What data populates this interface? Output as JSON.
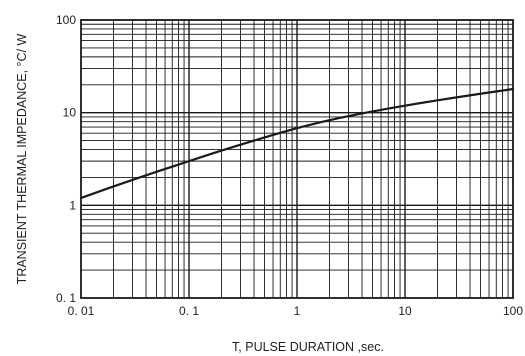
{
  "chart_data": {
    "type": "line",
    "title": "",
    "xlabel": "T, PULSE DURATION ,sec.",
    "ylabel": "TRANSIENT THERMAL IMPEDANCE, °C/ W",
    "xscale": "log",
    "yscale": "log",
    "xlim": [
      0.01,
      100
    ],
    "ylim": [
      0.1,
      100
    ],
    "grid": true,
    "legend": "none",
    "x_ticks": [
      {
        "value": 0.01,
        "label": "0. 01"
      },
      {
        "value": 0.1,
        "label": "0. 1"
      },
      {
        "value": 1,
        "label": "1"
      },
      {
        "value": 10,
        "label": "10"
      },
      {
        "value": 100,
        "label": "100"
      }
    ],
    "y_ticks": [
      {
        "value": 0.1,
        "label": "0. 1"
      },
      {
        "value": 1,
        "label": "1"
      },
      {
        "value": 10,
        "label": "10"
      },
      {
        "value": 100,
        "label": "100"
      }
    ],
    "series": [
      {
        "color": "#1a1a1a",
        "x": [
          0.01,
          0.02,
          0.05,
          0.1,
          0.2,
          0.5,
          1,
          2,
          5,
          10,
          20,
          50,
          100
        ],
        "y": [
          1.2,
          1.6,
          2.3,
          3.0,
          3.9,
          5.4,
          6.8,
          8.3,
          10.3,
          11.9,
          13.6,
          16.0,
          18.0
        ]
      }
    ]
  }
}
